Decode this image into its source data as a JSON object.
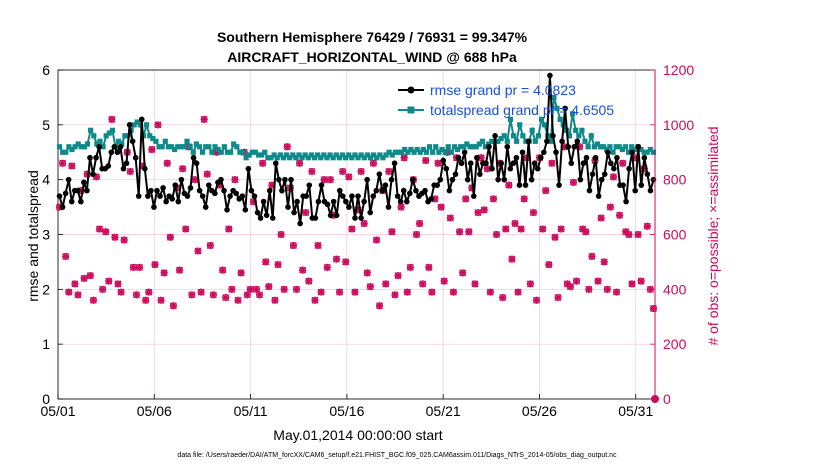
{
  "chart_data": {
    "type": "line",
    "title": "Southern Hemisphere 76429 / 76931 = 99.347%",
    "subtitle": "AIRCRAFT_HORIZONTAL_WIND @ 688 hPa",
    "xlabel": "May.01,2014 00:00:00 start",
    "ylabel": "rmse and totalspread",
    "y2label": "# of obs: o=possible; ×=assimilated",
    "footer": "data file: /Users/raeder/DAI/ATM_forcXX/CAM6_setup/f.e21.FHIST_BGC.f09_025.CAM6assim.011/Diags_NTrS_2014-05/obs_diag_output.nc",
    "xlim": [
      0,
      31
    ],
    "ylim": [
      0,
      6
    ],
    "y2lim": [
      0,
      1200
    ],
    "x_ticks": [
      0,
      5,
      10,
      15,
      20,
      25,
      30
    ],
    "x_tick_labels": [
      "05/01",
      "05/06",
      "05/11",
      "05/16",
      "05/21",
      "05/26",
      "05/31"
    ],
    "y_ticks": [
      0,
      1,
      2,
      3,
      4,
      5,
      6
    ],
    "y_tick_labels": [
      "0",
      "1",
      "2",
      "3",
      "4",
      "5",
      "6"
    ],
    "y2_ticks": [
      0,
      200,
      400,
      600,
      800,
      1000,
      1200
    ],
    "y2_tick_labels": [
      "0",
      "200",
      "400",
      "600",
      "800",
      "1000",
      "1200"
    ],
    "grid": true,
    "legend_position": "top-right",
    "colors": {
      "rmse": "#000000",
      "totalspread": "#0f8a8a",
      "obs": "#cc0a5c",
      "legend_text": "#1a4fd6",
      "grid": "#f2c4d6"
    },
    "series": [
      {
        "name": "rmse grand pr = 4.0823",
        "color": "#000000",
        "values": [
          3.7,
          3.5,
          3.75,
          4.0,
          3.6,
          3.8,
          3.8,
          3.6,
          3.95,
          3.8,
          4.4,
          4.1,
          4.4,
          4.6,
          4.2,
          4.2,
          4.25,
          4.5,
          4.6,
          4.5,
          4.6,
          4.2,
          4.3,
          5.0,
          4.7,
          4.4,
          3.7,
          5.1,
          4.2,
          3.7,
          3.8,
          3.5,
          3.8,
          3.7,
          3.85,
          3.6,
          3.7,
          3.65,
          3.9,
          3.6,
          4.0,
          3.75,
          3.7,
          3.85,
          4.4,
          4.3,
          3.8,
          3.7,
          3.5,
          3.9,
          3.8,
          3.75,
          3.95,
          4.0,
          3.8,
          3.45,
          3.7,
          3.8,
          3.75,
          3.65,
          3.7,
          3.45,
          4.2,
          3.8,
          3.7,
          3.4,
          3.3,
          3.6,
          3.35,
          3.8,
          3.3,
          4.3,
          4.0,
          3.8,
          4.0,
          3.5,
          4.0,
          3.4,
          3.6,
          3.2,
          3.7,
          3.7,
          3.9,
          3.3,
          3.3,
          3.6,
          3.9,
          3.6,
          3.55,
          3.35,
          3.6,
          3.35,
          3.8,
          3.7,
          3.6,
          3.5,
          3.7,
          3.3,
          3.7,
          3.3,
          3.6,
          4.0,
          3.4,
          3.7,
          3.8,
          4.1,
          3.8,
          3.9,
          3.5,
          4.0,
          4.3,
          3.7,
          3.6,
          3.8,
          3.6,
          3.75,
          4.0,
          3.8,
          3.7,
          3.75,
          3.8,
          3.6,
          3.65,
          3.9,
          3.9,
          4.0,
          4.35,
          4.2,
          3.8,
          4.0,
          4.1,
          4.4,
          4.3,
          4.5,
          4.0,
          4.3,
          3.7,
          4.4,
          4.1,
          4.3,
          4.3,
          4.6,
          4.2,
          4.8,
          4.0,
          4.3,
          4.0,
          4.6,
          4.2,
          4.3,
          4.4,
          3.9,
          4.5,
          3.9,
          4.7,
          4.0,
          4.3,
          4.2,
          4.4,
          4.5,
          4.7,
          5.9,
          4.8,
          4.5,
          3.9,
          4.7,
          5.3,
          4.6,
          4.3,
          4.6,
          4.7,
          4.0,
          4.3,
          4.4,
          3.8,
          4.1,
          4.4,
          3.7,
          4.0,
          4.1,
          4.5,
          4.3,
          4.2,
          4.4,
          3.9,
          3.9,
          3.6,
          4.2,
          4.5,
          3.8,
          4.6,
          3.9,
          4.4,
          4.1,
          3.8,
          4.0
        ]
      },
      {
        "name": "totalspread grand pr = 4.6505",
        "color": "#0f8a8a",
        "values": [
          4.6,
          4.5,
          4.5,
          4.6,
          4.55,
          4.6,
          4.65,
          4.6,
          4.6,
          4.65,
          4.9,
          4.8,
          4.65,
          4.7,
          4.6,
          4.8,
          4.85,
          4.9,
          4.6,
          4.7,
          4.65,
          4.8,
          4.8,
          4.9,
          5.0,
          5.05,
          5.0,
          4.8,
          5.0,
          4.8,
          4.75,
          4.7,
          4.6,
          4.6,
          4.7,
          4.6,
          4.6,
          4.55,
          4.6,
          4.6,
          4.6,
          4.7,
          4.6,
          4.5,
          4.65,
          4.6,
          4.5,
          4.6,
          4.6,
          4.5,
          4.6,
          4.55,
          4.5,
          4.6,
          4.5,
          4.5,
          4.65,
          4.6,
          4.5,
          4.5,
          4.4,
          4.45,
          4.5,
          4.5,
          4.45,
          4.45,
          4.5,
          4.4,
          4.4,
          4.45,
          4.4,
          4.45,
          4.4,
          4.45,
          4.4,
          4.45,
          4.4,
          4.45,
          4.4,
          4.45,
          4.4,
          4.45,
          4.4,
          4.45,
          4.4,
          4.45,
          4.4,
          4.45,
          4.4,
          4.45,
          4.4,
          4.45,
          4.4,
          4.45,
          4.4,
          4.45,
          4.4,
          4.45,
          4.4,
          4.45,
          4.4,
          4.45,
          4.4,
          4.45,
          4.4,
          4.45,
          4.5,
          4.45,
          4.5,
          4.5,
          4.5,
          4.55,
          4.5,
          4.55,
          4.5,
          4.55,
          4.5,
          4.55,
          4.5,
          4.6,
          4.5,
          4.6,
          4.5,
          4.55,
          4.5,
          4.6,
          4.5,
          4.6,
          4.55,
          4.6,
          4.6,
          4.65,
          4.6,
          4.6,
          4.6,
          4.65,
          4.7,
          4.6,
          4.65,
          4.7,
          4.7,
          4.7,
          4.75,
          4.8,
          4.7,
          5.1,
          4.8,
          4.7,
          5.0,
          4.8,
          4.7,
          4.7,
          4.9,
          4.7,
          4.8,
          5.1,
          5.0,
          4.8,
          4.7,
          5.5,
          5.3,
          5.1,
          5.0,
          4.9,
          4.8,
          5.2,
          4.9,
          4.8,
          4.9,
          4.7,
          4.6,
          4.8,
          4.6,
          4.65,
          4.6,
          4.6,
          4.55,
          4.6,
          4.5,
          4.6,
          4.6,
          4.55,
          4.6,
          4.5,
          4.6,
          4.55,
          4.6,
          4.55,
          4.5,
          4.5,
          4.55,
          4.5
        ]
      },
      {
        "name": "obs possible/assimilated",
        "axis": "right",
        "color": "#cc0a5c",
        "values": [
          700,
          860,
          520,
          390,
          850,
          420,
          380,
          760,
          440,
          820,
          450,
          360,
          810,
          620,
          400,
          610,
          430,
          1020,
          590,
          420,
          390,
          580,
          900,
          830,
          480,
          380,
          480,
          850,
          360,
          390,
          910,
          490,
          1000,
          360,
          460,
          860,
          590,
          340,
          770,
          470,
          840,
          620,
          920,
          380,
          800,
          540,
          390,
          1020,
          820,
          560,
          380,
          900,
          780,
          470,
          370,
          620,
          400,
          800,
          360,
          460,
          900,
          380,
          400,
          720,
          400,
          380,
          860,
          500,
          410,
          780,
          360,
          490,
          600,
          400,
          920,
          770,
          560,
          400,
          860,
          470,
          680,
          430,
          830,
          360,
          560,
          390,
          800,
          480,
          800,
          670,
          510,
          390,
          830,
          500,
          810,
          620,
          390,
          690,
          830,
          640,
          460,
          410,
          860,
          580,
          340,
          760,
          420,
          830,
          610,
          380,
          450,
          700,
          880,
          390,
          480,
          800,
          600,
          640,
          420,
          870,
          480,
          390,
          730,
          860,
          700,
          430,
          900,
          660,
          390,
          880,
          610,
          460,
          730,
          610,
          770,
          420,
          680,
          880,
          690,
          840,
          390,
          730,
          600,
          860,
          370,
          620,
          780,
          510,
          640,
          390,
          620,
          730,
          880,
          420,
          680,
          360,
          880,
          620,
          760,
          490,
          860,
          590,
          370,
          620,
          920,
          420,
          410,
          790,
          430,
          920,
          620,
          610,
          400,
          520,
          870,
          430,
          660,
          500,
          400,
          700,
          810,
          390,
          670,
          860,
          610,
          600,
          420,
          880,
          600,
          430,
          840,
          630,
          400,
          330
        ]
      }
    ]
  }
}
